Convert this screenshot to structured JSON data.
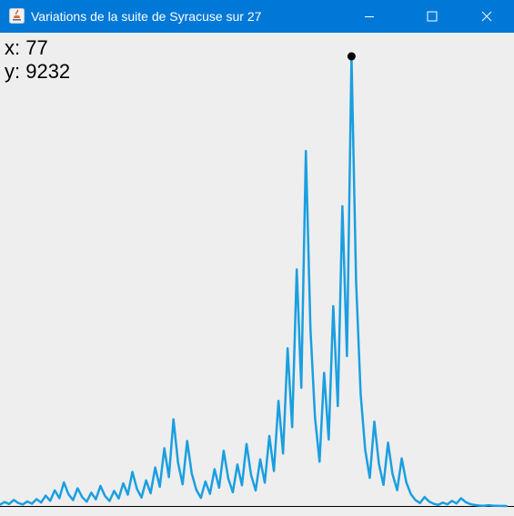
{
  "window": {
    "title": "Variations de la suite de Syracuse sur 27",
    "icon": "java-icon",
    "controls": [
      "minimize-icon",
      "maximize-icon",
      "close-icon"
    ],
    "titlebar_color": "#0078d7"
  },
  "readout": {
    "x_text": "x: 77",
    "y_text": "y: 9232"
  },
  "chart_data": {
    "type": "line",
    "title": "",
    "xlabel": "",
    "ylabel": "",
    "line_color": "#1a9fe0",
    "marker_color": "#000000",
    "highlight_point": {
      "x": 77,
      "y": 9232
    },
    "xlim": [
      0,
      111
    ],
    "ylim": [
      0,
      9232
    ],
    "y": [
      27,
      82,
      41,
      124,
      62,
      31,
      94,
      47,
      142,
      71,
      214,
      107,
      322,
      161,
      484,
      242,
      121,
      364,
      182,
      91,
      274,
      137,
      412,
      206,
      103,
      310,
      155,
      466,
      233,
      700,
      350,
      175,
      526,
      263,
      790,
      395,
      1186,
      593,
      1780,
      890,
      445,
      1336,
      668,
      334,
      167,
      502,
      251,
      754,
      377,
      1132,
      566,
      283,
      850,
      425,
      1276,
      638,
      319,
      958,
      479,
      1438,
      719,
      2158,
      1079,
      3238,
      1619,
      4858,
      2429,
      7288,
      3644,
      1822,
      911,
      2734,
      1367,
      4102,
      2051,
      6154,
      3077,
      9232,
      4616,
      2308,
      1154,
      577,
      1732,
      866,
      433,
      1300,
      650,
      325,
      976,
      488,
      244,
      122,
      61,
      184,
      92,
      46,
      23,
      70,
      35,
      106,
      53,
      160,
      80,
      40,
      20,
      10,
      5,
      16,
      8,
      4,
      2,
      1
    ]
  }
}
